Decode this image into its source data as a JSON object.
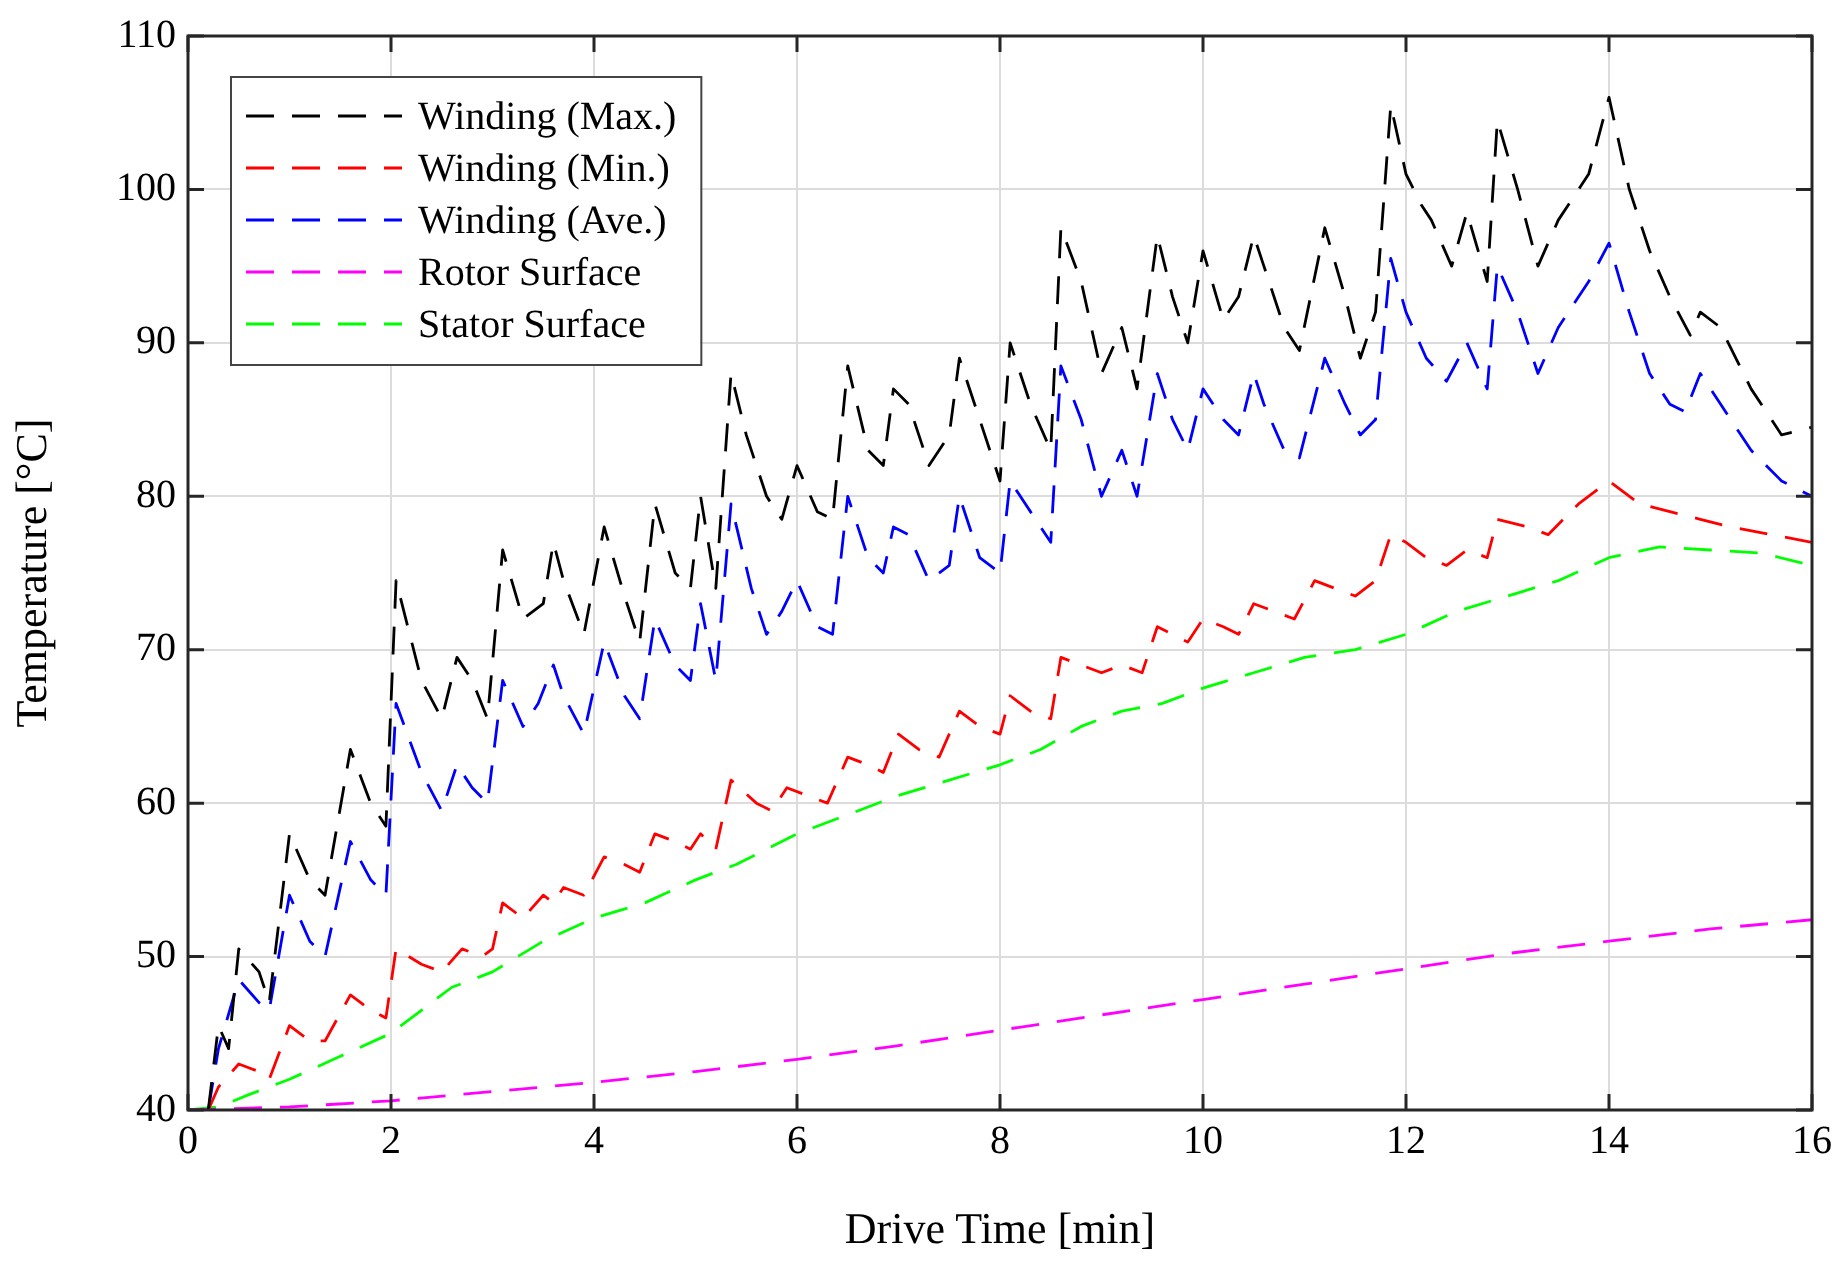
{
  "chart_data": {
    "type": "line",
    "xlabel": "Drive Time [min]",
    "ylabel": "Temperature [°C]",
    "xlim": [
      0,
      16
    ],
    "xticks": [
      0,
      2,
      4,
      6,
      8,
      10,
      12,
      14,
      16
    ],
    "ylim": [
      40,
      110
    ],
    "yticks": [
      40,
      50,
      60,
      70,
      80,
      90,
      100,
      110
    ],
    "grid": true,
    "legend": "top left",
    "line_style": "dashed",
    "marker": "none",
    "series": [
      {
        "name": "Winding (Max.)",
        "color": "#000000",
        "x": [
          0.2,
          0.3,
          0.4,
          0.5,
          0.7,
          0.8,
          1.0,
          1.2,
          1.35,
          1.6,
          1.8,
          1.95,
          2.05,
          2.3,
          2.5,
          2.65,
          2.8,
          2.95,
          3.1,
          3.3,
          3.5,
          3.6,
          3.7,
          3.9,
          4.1,
          4.3,
          4.45,
          4.6,
          4.8,
          4.95,
          5.05,
          5.2,
          5.35,
          5.5,
          5.7,
          5.85,
          6.0,
          6.2,
          6.35,
          6.5,
          6.7,
          6.85,
          6.95,
          7.1,
          7.3,
          7.5,
          7.6,
          7.8,
          8.0,
          8.1,
          8.3,
          8.5,
          8.6,
          8.8,
          9.0,
          9.2,
          9.35,
          9.55,
          9.7,
          9.85,
          10.0,
          10.2,
          10.35,
          10.5,
          10.6,
          10.8,
          10.95,
          11.2,
          11.4,
          11.55,
          11.7,
          11.85,
          12.0,
          12.15,
          12.25,
          12.45,
          12.6,
          12.8,
          12.9,
          13.1,
          13.3,
          13.5,
          13.8,
          14.0,
          14.2,
          14.4,
          14.6,
          14.8,
          14.9,
          15.1,
          15.4,
          15.7,
          16
        ],
        "values": [
          40,
          45.5,
          44,
          50.5,
          49,
          47,
          58,
          55,
          54,
          63.5,
          60,
          58.5,
          74.5,
          68,
          65.5,
          69.5,
          68,
          65.5,
          76.5,
          72,
          73,
          77,
          74.5,
          71,
          78,
          73.5,
          70.5,
          79.5,
          75,
          74,
          80,
          74,
          88,
          84,
          80,
          78.5,
          82,
          79,
          78.5,
          88.5,
          83,
          82,
          87,
          86,
          82,
          84,
          89,
          85,
          81,
          90,
          86,
          83,
          97.5,
          94,
          88,
          91,
          87,
          97,
          93,
          90,
          96,
          91.5,
          93,
          97,
          95,
          91,
          89.5,
          97.5,
          93,
          89,
          92,
          105.5,
          101,
          99,
          98,
          95,
          98.5,
          94,
          104.5,
          100,
          95,
          98,
          101,
          106,
          100,
          96,
          93,
          90.5,
          92,
          91,
          87,
          84,
          84.5
        ]
      },
      {
        "name": "Winding (Min.)",
        "color": "#ff0000",
        "x": [
          0.2,
          0.3,
          0.5,
          0.7,
          0.8,
          1.0,
          1.2,
          1.35,
          1.6,
          1.8,
          1.95,
          2.05,
          2.3,
          2.5,
          2.7,
          2.9,
          3.0,
          3.1,
          3.3,
          3.5,
          3.6,
          3.7,
          3.9,
          4.1,
          4.3,
          4.45,
          4.6,
          4.8,
          4.95,
          5.05,
          5.2,
          5.35,
          5.6,
          5.75,
          5.9,
          6.1,
          6.3,
          6.5,
          6.7,
          6.85,
          7.0,
          7.2,
          7.4,
          7.6,
          7.8,
          8.0,
          8.1,
          8.3,
          8.5,
          8.6,
          8.8,
          9.0,
          9.2,
          9.4,
          9.55,
          9.7,
          9.85,
          10.0,
          10.2,
          10.35,
          10.5,
          10.7,
          10.9,
          11.1,
          11.3,
          11.5,
          11.7,
          11.85,
          12.0,
          12.2,
          12.4,
          12.6,
          12.8,
          12.9,
          13.2,
          13.4,
          13.7,
          14.0,
          14.3,
          14.6,
          14.9,
          15.2,
          15.6,
          16
        ],
        "values": [
          40,
          41.5,
          43,
          42.5,
          42,
          45.5,
          44.5,
          44.5,
          47.5,
          46.5,
          46,
          50.5,
          49.5,
          49,
          50.5,
          50,
          50.5,
          53.5,
          52.5,
          54,
          53.5,
          54.5,
          54,
          56.5,
          56,
          55.5,
          58,
          57.5,
          57,
          58,
          57,
          61.5,
          60,
          59.5,
          61,
          60.5,
          60,
          63,
          62.5,
          62,
          64.5,
          63.5,
          63,
          66,
          65,
          64.5,
          67,
          66,
          65.5,
          69.5,
          69,
          68.5,
          69,
          68.5,
          71.5,
          71,
          70.5,
          72,
          71.5,
          71,
          73,
          72.5,
          72,
          74.5,
          74,
          73.5,
          74.5,
          77.5,
          77,
          76,
          75.5,
          76.5,
          76,
          78.5,
          78,
          77.5,
          79.5,
          81,
          79.5,
          79,
          78.5,
          78,
          77.5,
          77
        ]
      },
      {
        "name": "Winding (Ave.)",
        "color": "#0000ff",
        "x": [
          0.2,
          0.3,
          0.5,
          0.7,
          0.8,
          1.0,
          1.2,
          1.35,
          1.6,
          1.8,
          1.95,
          2.05,
          2.3,
          2.5,
          2.65,
          2.8,
          2.95,
          3.1,
          3.3,
          3.45,
          3.6,
          3.7,
          3.9,
          4.1,
          4.3,
          4.45,
          4.6,
          4.8,
          4.95,
          5.05,
          5.2,
          5.35,
          5.55,
          5.7,
          5.85,
          6.0,
          6.2,
          6.35,
          6.5,
          6.7,
          6.85,
          6.95,
          7.1,
          7.3,
          7.5,
          7.6,
          7.8,
          8.0,
          8.1,
          8.3,
          8.5,
          8.6,
          8.8,
          9.0,
          9.2,
          9.35,
          9.55,
          9.7,
          9.85,
          10.0,
          10.2,
          10.35,
          10.5,
          10.6,
          10.8,
          10.95,
          11.2,
          11.4,
          11.55,
          11.7,
          11.85,
          12.0,
          12.2,
          12.4,
          12.6,
          12.8,
          12.9,
          13.1,
          13.3,
          13.5,
          13.8,
          14.0,
          14.2,
          14.4,
          14.6,
          14.75,
          14.9,
          15.1,
          15.4,
          15.7,
          16
        ],
        "values": [
          40,
          44,
          48.5,
          47,
          46.5,
          54,
          51,
          50,
          57.5,
          55,
          54,
          66.5,
          62,
          59.5,
          62.5,
          61,
          60,
          68,
          65,
          66.5,
          69,
          67,
          64.5,
          70.5,
          67,
          65.5,
          72,
          69,
          68,
          73,
          68,
          79.5,
          74,
          71,
          72.5,
          74.5,
          71.5,
          71,
          80,
          76,
          75,
          78,
          77.5,
          74.5,
          75.5,
          80,
          76,
          75,
          81,
          79,
          77,
          88.5,
          85,
          80,
          83,
          80,
          88,
          85,
          83,
          87,
          85,
          84,
          88,
          86,
          83,
          82.5,
          89,
          86,
          84,
          85,
          95.5,
          92,
          89,
          87.5,
          90,
          87,
          95,
          92,
          88,
          91,
          94,
          96.5,
          92,
          88,
          86,
          85.5,
          88,
          86,
          83,
          81,
          80
        ]
      },
      {
        "name": "Rotor Surface",
        "color": "#ff00ff",
        "x": [
          0,
          1,
          2,
          3,
          4,
          5,
          6,
          7,
          8,
          9,
          10,
          11,
          12,
          13,
          14,
          15,
          16
        ],
        "values": [
          40,
          40.2,
          40.6,
          41.2,
          41.8,
          42.5,
          43.3,
          44.2,
          45.2,
          46.2,
          47.2,
          48.2,
          49.2,
          50.2,
          51,
          51.8,
          52.4
        ]
      },
      {
        "name": "Stator Surface",
        "color": "#00ff00",
        "x": [
          0,
          0.3,
          0.6,
          1.0,
          1.5,
          2.0,
          2.3,
          2.6,
          3.0,
          3.5,
          4.0,
          4.5,
          5.0,
          5.4,
          5.7,
          6.0,
          6.4,
          7.0,
          7.5,
          8.0,
          8.4,
          8.8,
          9.2,
          9.6,
          10,
          10.5,
          11,
          11.5,
          12,
          12.5,
          13,
          13.5,
          14,
          14.5,
          15,
          15.5,
          16
        ],
        "values": [
          40,
          40.2,
          41,
          42,
          43.5,
          45,
          46.5,
          48,
          49,
          51,
          52.5,
          53.5,
          55,
          56,
          57,
          58,
          59,
          60.5,
          61.5,
          62.5,
          63.5,
          65,
          66,
          66.5,
          67.5,
          68.5,
          69.5,
          70,
          71,
          72.5,
          73.5,
          74.5,
          76,
          76.7,
          76.5,
          76.3,
          75.5
        ]
      }
    ]
  }
}
